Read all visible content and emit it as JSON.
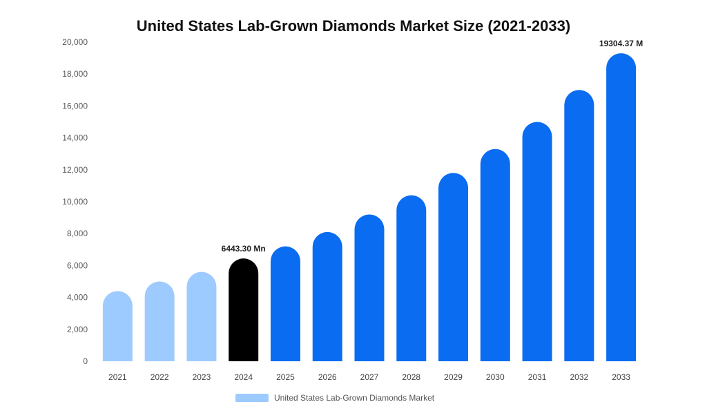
{
  "chart_data": {
    "type": "bar",
    "title": "United States Lab-Grown Diamonds Market Size (2021-2033)",
    "categories": [
      "2021",
      "2022",
      "2023",
      "2024",
      "2025",
      "2026",
      "2027",
      "2028",
      "2029",
      "2030",
      "2031",
      "2032",
      "2033"
    ],
    "values": [
      4400,
      5000,
      5600,
      6443.3,
      7200,
      8100,
      9200,
      10400,
      11800,
      13300,
      15000,
      17000,
      19304.37
    ],
    "ylim": [
      0,
      20000
    ],
    "yticks": [
      "0",
      "2,000",
      "4,000",
      "6,000",
      "8,000",
      "10,000",
      "12,000",
      "14,000",
      "16,000",
      "18,000",
      "20,000"
    ],
    "ytick_values": [
      0,
      2000,
      4000,
      6000,
      8000,
      10000,
      12000,
      14000,
      16000,
      18000,
      20000
    ],
    "grid": false,
    "legend": {
      "position": "bottom",
      "entries": [
        "United States Lab-Grown Diamonds Market"
      ]
    },
    "data_labels": [
      {
        "category": "2024",
        "text": "6443.30 Mn"
      },
      {
        "category": "2033",
        "text": "19304.37 M"
      }
    ],
    "colors": {
      "historical": "#9ecbff",
      "base_year": "#000000",
      "forecast": "#0a6cf0"
    },
    "bar_color_groups": [
      "historical",
      "historical",
      "historical",
      "base_year",
      "forecast",
      "forecast",
      "forecast",
      "forecast",
      "forecast",
      "forecast",
      "forecast",
      "forecast",
      "forecast"
    ]
  }
}
